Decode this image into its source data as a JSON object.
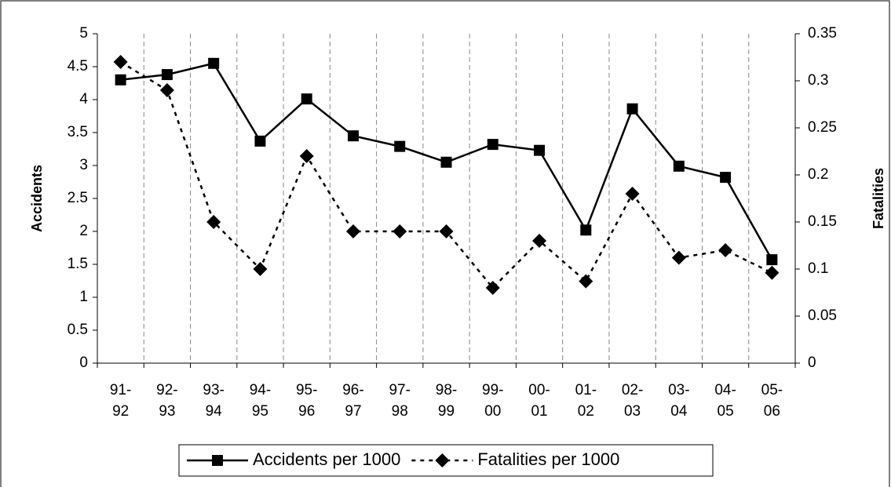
{
  "chart_data": {
    "type": "line",
    "categories": [
      "91-92",
      "92-93",
      "93-94",
      "94-95",
      "95-96",
      "96-97",
      "97-98",
      "98-99",
      "99-00",
      "00-01",
      "01-02",
      "02-03",
      "03-04",
      "04-05",
      "05-06"
    ],
    "series": [
      {
        "name": "Accidents per 1000",
        "color": "#000000",
        "line": "solid",
        "marker": "square",
        "values": [
          4.3,
          4.38,
          4.55,
          3.37,
          4.01,
          3.45,
          3.29,
          3.05,
          3.32,
          3.23,
          2.02,
          3.86,
          2.99,
          2.82,
          1.57
        ]
      },
      {
        "name": "Fatalities per 1000",
        "color": "#000000",
        "line": "dashed",
        "marker": "diamond",
        "axis": "y2",
        "values": [
          0.32,
          0.29,
          0.15,
          0.1,
          0.22,
          0.14,
          0.14,
          0.14,
          0.08,
          0.13,
          0.087,
          0.18,
          0.112,
          0.12,
          0.096
        ]
      }
    ],
    "ylabel": "Accidents",
    "y2label": "Fatalities",
    "ylim": [
      0,
      5
    ],
    "yticks": [
      0,
      0.5,
      1,
      1.5,
      2,
      2.5,
      3,
      3.5,
      4,
      4.5,
      5
    ],
    "y2lim": [
      0,
      0.35
    ],
    "y2ticks": [
      0,
      0.05,
      0.1,
      0.15,
      0.2,
      0.25,
      0.3,
      0.35
    ],
    "grid": "x",
    "legend": "bottom"
  }
}
